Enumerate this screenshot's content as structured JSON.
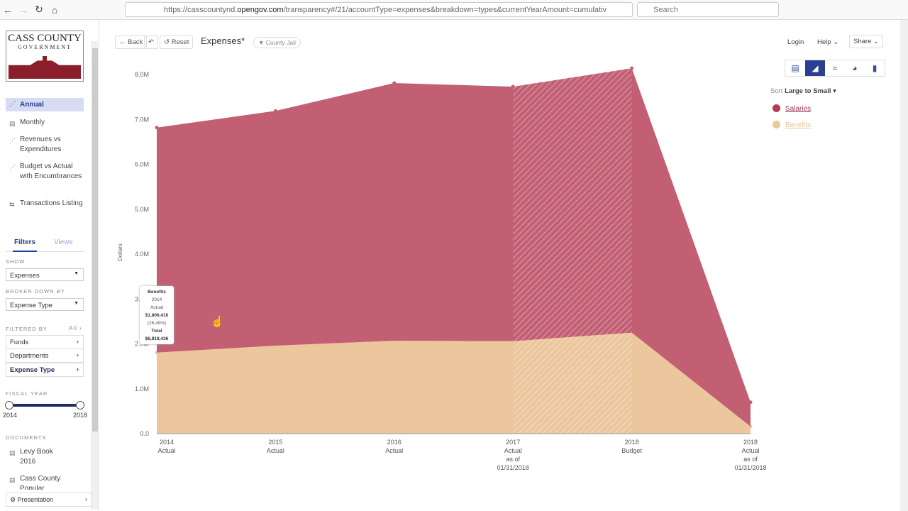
{
  "browser": {
    "url_pre": "https://casscountynd.",
    "url_domain": "opengov.com",
    "url_post": "/transparency#/21/accountType=expenses&breakdown=types&currentYearAmount=cumulativ",
    "search_placeholder": "Search"
  },
  "sidebar": {
    "logo_line1": "CASS COUNTY",
    "logo_line2": "GOVERNMENT",
    "nav": [
      {
        "label": "Annual",
        "active": true
      },
      {
        "label": "Monthly"
      },
      {
        "label": "Revenues vs Expenditures"
      },
      {
        "label": "Budget vs Actual with Encumbrances"
      },
      {
        "label": "Transactions Listing"
      }
    ],
    "tabs": {
      "filters": "Filters",
      "views": "Views"
    },
    "show_label": "SHOW",
    "show_value": "Expenses",
    "breakdown_label": "BROKEN DOWN BY",
    "breakdown_value": "Expense Type",
    "filtered_label": "FILTERED BY",
    "filtered_all": "All",
    "filters": [
      "Funds",
      "Departments",
      "Expense Type"
    ],
    "fiscal_label": "FISCAL YEAR",
    "fiscal_from": "2014",
    "fiscal_to": "2018",
    "documents_label": "DOCUMENTS",
    "documents": [
      "Levy Book 2016",
      "Cass County Popular"
    ],
    "presentation": "Presentation"
  },
  "header": {
    "back": "Back",
    "reset": "Reset",
    "title": "Expenses*",
    "filter_pill": "County Jail",
    "login": "Login",
    "help": "Help",
    "share": "Share"
  },
  "view_types": [
    "stacked-area-icon",
    "area-icon",
    "line-icon",
    "pie-icon",
    "bar-icon"
  ],
  "sort": {
    "label": "Sort",
    "value": "Large to Small"
  },
  "tooltip": {
    "series": "Benefits",
    "year": "2014",
    "kind": "Actual",
    "value": "$1,806,410",
    "pct": "(26.49%)",
    "total_label": "Total",
    "total": "$6,818,436"
  },
  "chart_data": {
    "type": "area",
    "stacked": true,
    "ylabel": "Dollars",
    "ylim": [
      0,
      8000000
    ],
    "yticks": [
      "0.0",
      "1.0M",
      "2.0M",
      "3.0M",
      "4.0M",
      "5.0M",
      "6.0M",
      "7.0M",
      "8.0M"
    ],
    "categories": [
      [
        "2014",
        "Actual"
      ],
      [
        "2015",
        "Actual"
      ],
      [
        "2016",
        "Actual"
      ],
      [
        "2017",
        "Actual",
        "as of",
        "01/31/2018"
      ],
      [
        "2018",
        "Budget"
      ],
      [
        "2018",
        "Actual",
        "as of",
        "01/31/2018"
      ]
    ],
    "hatched_categories": [
      3,
      4
    ],
    "series": [
      {
        "name": "Salaries",
        "color": "#c25f73",
        "values": [
          5012026,
          5230000,
          5740000,
          5670000,
          5890000,
          540000
        ]
      },
      {
        "name": "Benefits",
        "color": "#ecc69c",
        "values": [
          1806410,
          1960000,
          2070000,
          2060000,
          2250000,
          160000
        ]
      }
    ]
  }
}
